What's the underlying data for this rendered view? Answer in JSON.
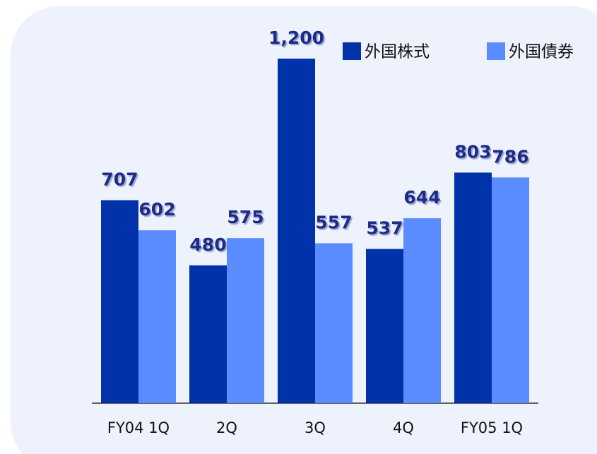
{
  "chart_data": {
    "type": "bar",
    "categories": [
      "FY04 1Q",
      "2Q",
      "3Q",
      "4Q",
      "FY05 1Q"
    ],
    "series": [
      {
        "name": "外国株式",
        "color": "#0033aa",
        "values": [
          707,
          480,
          1200,
          537,
          803
        ],
        "value_labels": [
          "707",
          "480",
          "1,200",
          "537",
          "803"
        ]
      },
      {
        "name": "外国債券",
        "color": "#5b8cff",
        "values": [
          602,
          575,
          557,
          644,
          786
        ]
      }
    ],
    "legend": "top-right"
  }
}
